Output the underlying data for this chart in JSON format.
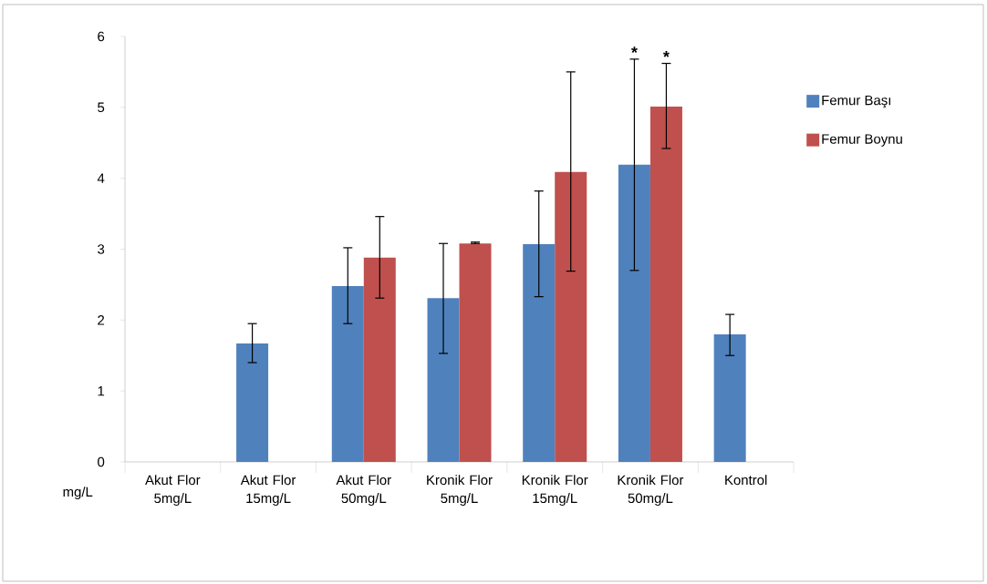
{
  "chart_data": {
    "type": "bar",
    "categories": [
      "Akut Flor 5mg/L",
      "Akut Flor 15mg/L",
      "Akut Flor 50mg/L",
      "Kronik Flor 5mg/L",
      "Kronik Flor 15mg/L",
      "Kronik Flor 50mg/L",
      "Kontrol"
    ],
    "xlabel": "mg/L",
    "series": [
      {
        "name": "Femur Başı",
        "color": "#4f81bd",
        "values": [
          null,
          1.67,
          2.48,
          2.31,
          3.07,
          4.19,
          1.8
        ],
        "errors": [
          null,
          [
            1.4,
            1.95
          ],
          [
            1.95,
            3.02
          ],
          [
            1.53,
            3.08
          ],
          [
            2.33,
            3.82
          ],
          [
            2.7,
            5.68
          ],
          [
            1.5,
            2.08
          ]
        ]
      },
      {
        "name": "Femur Boynu",
        "color": "#c0504d",
        "values": [
          null,
          null,
          2.88,
          3.08,
          4.09,
          5.01,
          null
        ],
        "errors": [
          null,
          null,
          [
            2.31,
            3.46
          ],
          [
            3.08,
            3.1
          ],
          [
            2.69,
            5.5
          ],
          [
            4.42,
            5.62
          ],
          null
        ]
      }
    ],
    "ylim": [
      0,
      6
    ],
    "yticks": [
      0,
      1,
      2,
      3,
      4,
      5,
      6
    ],
    "legend": "right",
    "annotations": [
      "*",
      "*"
    ]
  }
}
